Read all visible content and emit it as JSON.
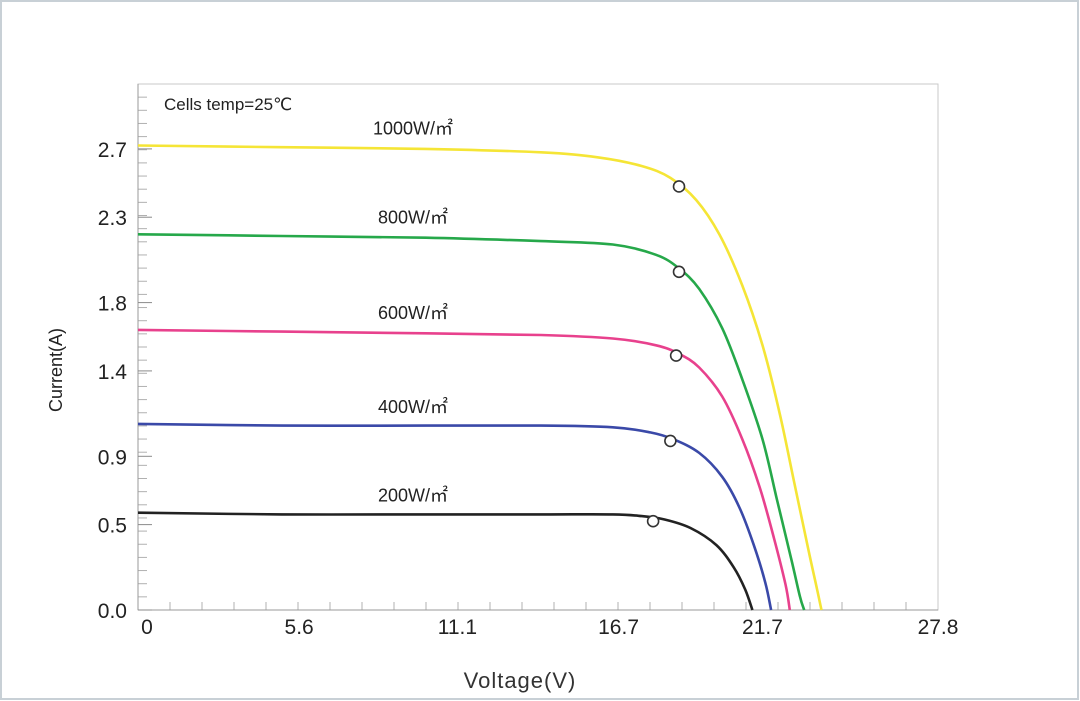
{
  "chart_data": {
    "type": "line",
    "annotation": "Cells temp=25℃",
    "xlabel": "Voltage(V)",
    "ylabel": "Current(A)",
    "xlim": [
      0,
      27.8
    ],
    "ylim": [
      0,
      3.08
    ],
    "x_ticks": [
      0,
      5.6,
      11.1,
      16.7,
      21.7,
      27.8
    ],
    "x_tick_labels": [
      "0",
      "5.6",
      "11.1",
      "16.7",
      "21.7",
      "27.8"
    ],
    "y_ticks": [
      0.0,
      0.5,
      0.9,
      1.4,
      1.8,
      2.3,
      2.7
    ],
    "y_tick_labels": [
      "0.0",
      "0.5",
      "0.9",
      "1.4",
      "1.8",
      "2.3",
      "2.7"
    ],
    "grid": false,
    "legend": "none",
    "series": [
      {
        "name": "1000W/㎡",
        "color": "#f5e536",
        "points": [
          [
            0,
            2.72
          ],
          [
            5,
            2.71
          ],
          [
            10,
            2.7
          ],
          [
            14,
            2.68
          ],
          [
            16,
            2.65
          ],
          [
            17.5,
            2.6
          ],
          [
            18.5,
            2.53
          ],
          [
            19.4,
            2.4
          ],
          [
            20.2,
            2.2
          ],
          [
            21.0,
            1.9
          ],
          [
            21.7,
            1.55
          ],
          [
            22.3,
            1.15
          ],
          [
            22.8,
            0.75
          ],
          [
            23.3,
            0.35
          ],
          [
            23.6,
            0.12
          ],
          [
            23.75,
            0.0
          ]
        ],
        "mpp": [
          18.8,
          2.48
        ]
      },
      {
        "name": "800W/㎡",
        "color": "#26a84a",
        "points": [
          [
            0,
            2.2
          ],
          [
            5,
            2.19
          ],
          [
            10,
            2.18
          ],
          [
            14,
            2.16
          ],
          [
            16.5,
            2.14
          ],
          [
            18,
            2.08
          ],
          [
            18.8,
            2.0
          ],
          [
            19.5,
            1.88
          ],
          [
            20.3,
            1.65
          ],
          [
            21.0,
            1.35
          ],
          [
            21.7,
            1.0
          ],
          [
            22.2,
            0.65
          ],
          [
            22.7,
            0.3
          ],
          [
            23.0,
            0.08
          ],
          [
            23.15,
            0.0
          ]
        ],
        "mpp": [
          18.8,
          1.98
        ]
      },
      {
        "name": "600W/㎡",
        "color": "#e8418d",
        "points": [
          [
            0,
            1.64
          ],
          [
            5,
            1.63
          ],
          [
            10,
            1.62
          ],
          [
            14,
            1.61
          ],
          [
            16.5,
            1.59
          ],
          [
            18,
            1.55
          ],
          [
            18.8,
            1.5
          ],
          [
            19.5,
            1.42
          ],
          [
            20.3,
            1.25
          ],
          [
            21.0,
            1.0
          ],
          [
            21.6,
            0.72
          ],
          [
            22.1,
            0.42
          ],
          [
            22.5,
            0.15
          ],
          [
            22.65,
            0.0
          ]
        ],
        "mpp": [
          18.7,
          1.49
        ]
      },
      {
        "name": "400W/㎡",
        "color": "#3a49a8",
        "points": [
          [
            0,
            1.09
          ],
          [
            5,
            1.08
          ],
          [
            10,
            1.08
          ],
          [
            14,
            1.08
          ],
          [
            16.5,
            1.07
          ],
          [
            17.8,
            1.04
          ],
          [
            18.6,
            1.0
          ],
          [
            19.5,
            0.92
          ],
          [
            20.3,
            0.78
          ],
          [
            20.9,
            0.6
          ],
          [
            21.4,
            0.38
          ],
          [
            21.8,
            0.16
          ],
          [
            22.0,
            0.0
          ]
        ],
        "mpp": [
          18.5,
          0.99
        ]
      },
      {
        "name": "200W/㎡",
        "color": "#222222",
        "points": [
          [
            0,
            0.57
          ],
          [
            5,
            0.56
          ],
          [
            10,
            0.56
          ],
          [
            14,
            0.56
          ],
          [
            16.5,
            0.56
          ],
          [
            17.5,
            0.55
          ],
          [
            18.3,
            0.53
          ],
          [
            19.2,
            0.48
          ],
          [
            20.1,
            0.38
          ],
          [
            20.7,
            0.25
          ],
          [
            21.1,
            0.12
          ],
          [
            21.35,
            0.0
          ]
        ],
        "mpp": [
          17.9,
          0.52
        ]
      }
    ]
  }
}
